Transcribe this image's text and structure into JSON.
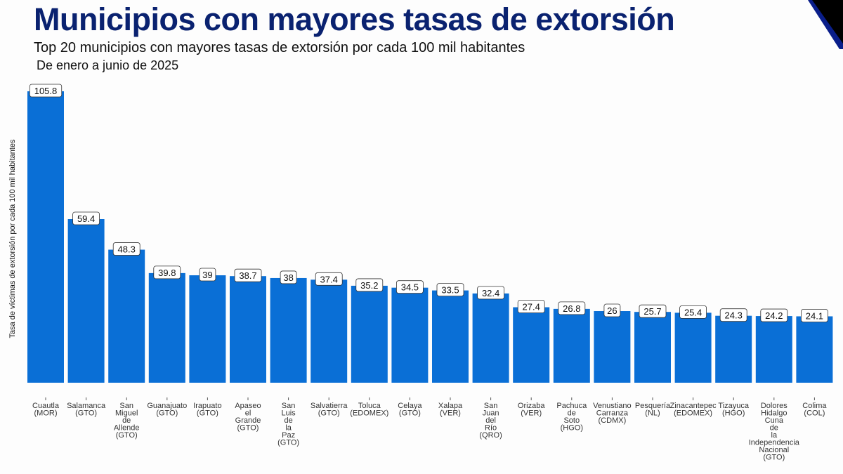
{
  "title": "Municipios con mayores tasas de extorsión",
  "subtitle": "Top 20 municipios con mayores tasas de extorsión por cada 100 mil habitantes",
  "period": "De enero a junio de 2025",
  "chart_data": {
    "type": "bar",
    "title": "Municipios con mayores tasas de extorsión",
    "ylabel": "Tasa de víctimas de extorsión por cada 100 mil habitantes",
    "xlabel": "",
    "categories": [
      "Cuautla (MOR)",
      "Salamanca (GTO)",
      "San Miguel de Allende (GTO)",
      "Guanajuato (GTO)",
      "Irapuato (GTO)",
      "Apaseo el Grande (GTO)",
      "San Luis de la Paz (GTO)",
      "Salvatierra (GTO)",
      "Toluca (EDOMEX)",
      "Celaya (GTO)",
      "Xalapa (VER)",
      "San Juan del Río (QRO)",
      "Orizaba (VER)",
      "Pachuca de Soto (HGO)",
      "Venustiano Carranza (CDMX)",
      "Pesquería (NL)",
      "Zinacantepec (EDOMEX)",
      "Tizayuca (HGO)",
      "Dolores Hidalgo Cuna de la Independencia Nacional (GTO)",
      "Colima (COL)"
    ],
    "values": [
      105.8,
      59.4,
      48.3,
      39.8,
      39,
      38.7,
      38,
      37.4,
      35.2,
      34.5,
      33.5,
      32.4,
      27.4,
      26.8,
      26,
      25.7,
      25.4,
      24.3,
      24.2,
      24.1
    ],
    "ylim": [
      0,
      110
    ],
    "grid": false,
    "bar_color": "#0a6fd6"
  }
}
